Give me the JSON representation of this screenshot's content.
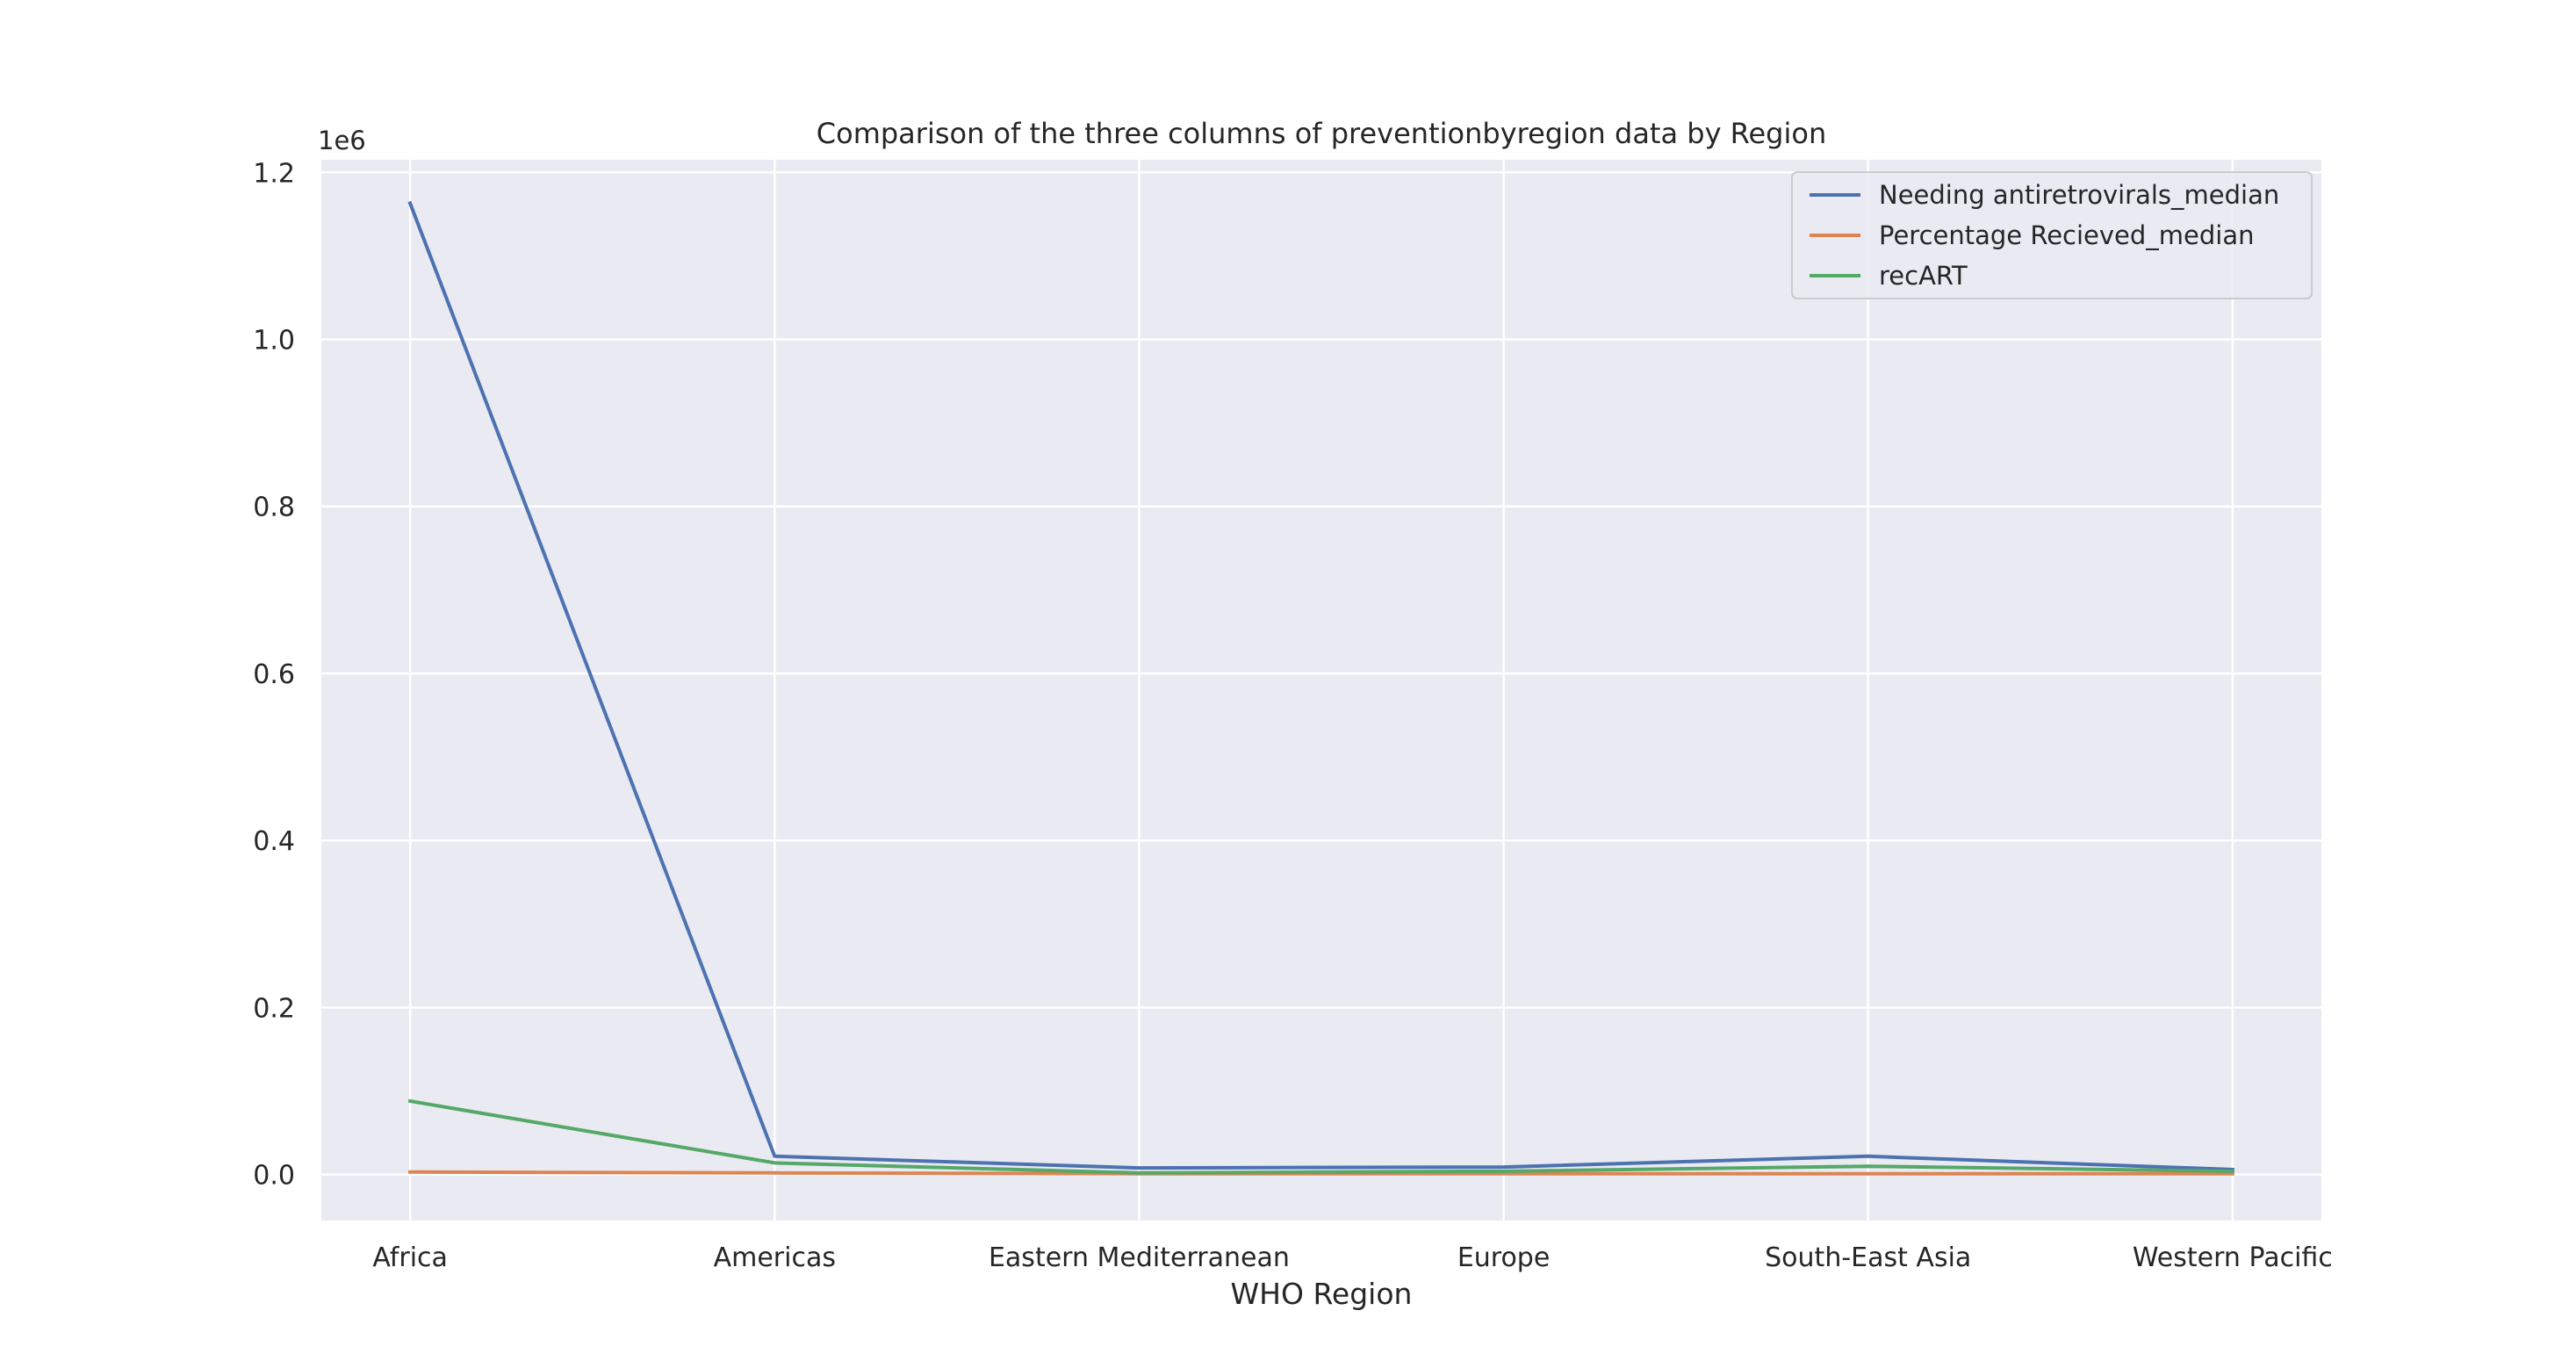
{
  "chart_data": {
    "type": "line",
    "title": "Comparison of the three columns of preventionbyregion data by Region",
    "xlabel": "WHO Region",
    "ylabel": "",
    "offset_label": "1e6",
    "categories": [
      "Africa",
      "Americas",
      "Eastern Mediterranean",
      "Europe",
      "South-East Asia",
      "Western Pacific"
    ],
    "ylim": [
      -0.055,
      1.215
    ],
    "yticks": [
      0.0,
      0.2,
      0.4,
      0.6,
      0.8,
      1.0,
      1.2
    ],
    "ytick_labels": [
      "0.0",
      "0.2",
      "0.4",
      "0.6",
      "0.8",
      "1.0",
      "1.2"
    ],
    "grid": true,
    "legend_position": "top-right",
    "series": [
      {
        "name": "Needing antiretrovirals_median",
        "color": "#4c72b0",
        "values": [
          1.163,
          0.022,
          0.008,
          0.009,
          0.022,
          0.006
        ]
      },
      {
        "name": "Percentage Recieved_median",
        "color": "#dd8452",
        "values": [
          0.003,
          0.002,
          0.001,
          0.001,
          0.001,
          0.001
        ]
      },
      {
        "name": "recART",
        "color": "#55a868",
        "values": [
          0.088,
          0.014,
          0.002,
          0.004,
          0.01,
          0.004
        ]
      }
    ]
  }
}
